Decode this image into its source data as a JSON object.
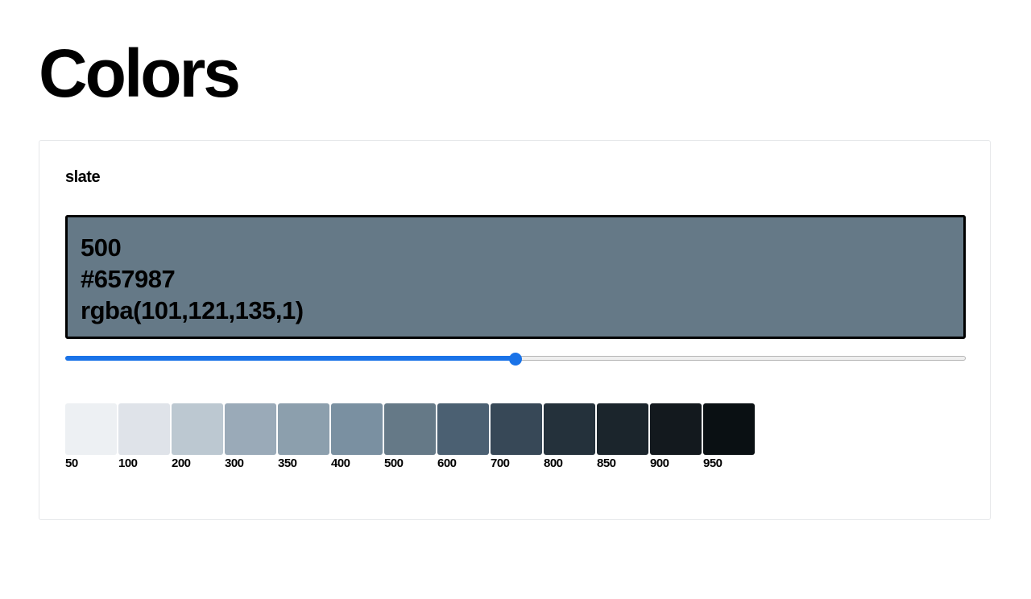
{
  "header": {
    "title": "Colors"
  },
  "palette": {
    "name": "slate",
    "selected": {
      "shade": "500",
      "hex": "#657987",
      "rgba": "rgba(101,121,135,1)"
    },
    "slider": {
      "value_fraction": 0.5,
      "fill_color": "#1a73e8"
    },
    "swatches": [
      {
        "label": "50",
        "color": "#edf0f3"
      },
      {
        "label": "100",
        "color": "#dfe3e9"
      },
      {
        "label": "200",
        "color": "#bcc8d1"
      },
      {
        "label": "300",
        "color": "#9aaab8"
      },
      {
        "label": "350",
        "color": "#8c9fad"
      },
      {
        "label": "400",
        "color": "#7a90a1"
      },
      {
        "label": "500",
        "color": "#657987"
      },
      {
        "label": "600",
        "color": "#4b6072"
      },
      {
        "label": "700",
        "color": "#374857"
      },
      {
        "label": "800",
        "color": "#24313b"
      },
      {
        "label": "850",
        "color": "#1b252c"
      },
      {
        "label": "900",
        "color": "#13191e"
      },
      {
        "label": "950",
        "color": "#0a1013"
      }
    ]
  }
}
